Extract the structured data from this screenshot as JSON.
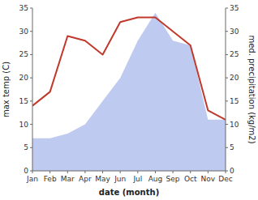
{
  "chart_data": {
    "type": "line",
    "x_label": "date (month)",
    "y_label": "max temp (C)",
    "y2_label": "med. precipitation (kg/m2)",
    "categories": [
      "Jan",
      "Feb",
      "Mar",
      "Apr",
      "May",
      "Jun",
      "Jul",
      "Aug",
      "Sep",
      "Oct",
      "Nov",
      "Dec"
    ],
    "series": [
      {
        "type": "area",
        "axis": "y2",
        "color": "#b8c4ee",
        "values": [
          7,
          7,
          8,
          10,
          15,
          20,
          28,
          34,
          28,
          27,
          11,
          11
        ]
      },
      {
        "type": "line",
        "color": "#c0392b",
        "values": [
          14,
          17,
          29,
          28,
          25,
          32,
          33,
          33,
          30,
          27,
          13,
          11
        ]
      }
    ],
    "ylim": [
      0,
      35
    ],
    "yticks": [
      0,
      5,
      10,
      15,
      20,
      25,
      30,
      35
    ],
    "y2lim": [
      0,
      35
    ],
    "y2ticks": [
      0,
      5,
      10,
      15,
      20,
      25,
      30,
      35
    ],
    "grid": false
  }
}
